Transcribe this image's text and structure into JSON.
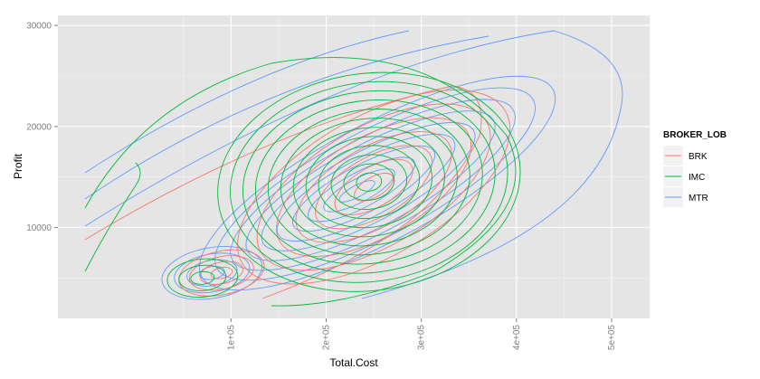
{
  "chart_data": {
    "type": "contour",
    "xlabel": "Total.Cost",
    "ylabel": "Profit",
    "xlim": [
      -82000,
      540000
    ],
    "ylim": [
      1000,
      31000
    ],
    "x_ticks": [
      100000,
      200000,
      300000,
      400000,
      500000
    ],
    "x_tick_labels": [
      "1e+05",
      "2e+05",
      "3e+05",
      "4e+05",
      "5e+05"
    ],
    "y_ticks": [
      10000,
      20000,
      30000
    ],
    "y_tick_labels": [
      "10000",
      "20000",
      "30000"
    ],
    "grid": true,
    "background": "#e5e5e5",
    "legend": {
      "title": "BROKER_LOB",
      "placement": "right",
      "entries": [
        "BRK",
        "IMC",
        "MTR"
      ]
    },
    "series": [
      {
        "name": "BRK",
        "color": "#f8766d",
        "shape": "density-contours",
        "center": [
          90000,
          5500
        ],
        "extra_center": [
          250000,
          14000
        ]
      },
      {
        "name": "IMC",
        "color": "#00ba38",
        "shape": "density-contours",
        "center": [
          245000,
          14500
        ],
        "extra_center": [
          70000,
          5000
        ]
      },
      {
        "name": "MTR",
        "color": "#619cff",
        "shape": "density-contours",
        "center": [
          230000,
          13500
        ],
        "extra_center": [
          80000,
          5500
        ]
      }
    ]
  }
}
